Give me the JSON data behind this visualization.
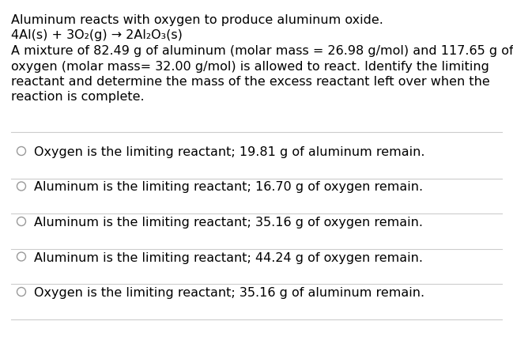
{
  "background_color": "#ffffff",
  "text_color": "#000000",
  "line_color": "#cccccc",
  "font_family": "DejaVu Sans",
  "question_lines": [
    "Aluminum reacts with oxygen to produce aluminum oxide.",
    "4Al(s) + 3O₂(g) → 2Al₂O₃(s)",
    "A mixture of 82.49 g of aluminum (molar mass = 26.98 g/mol) and 117.65 g of",
    "oxygen (molar mass= 32.00 g/mol) is allowed to react. Identify the limiting",
    "reactant and determine the mass of the excess reactant left over when the",
    "reaction is complete."
  ],
  "options": [
    "Oxygen is the limiting reactant; 19.81 g of aluminum remain.",
    "Aluminum is the limiting reactant; 16.70 g of oxygen remain.",
    "Aluminum is the limiting reactant; 35.16 g of oxygen remain.",
    "Aluminum is the limiting reactant; 44.24 g of oxygen remain.",
    "Oxygen is the limiting reactant; 35.16 g of aluminum remain."
  ],
  "font_size_question": 11.5,
  "font_size_options": 11.5
}
